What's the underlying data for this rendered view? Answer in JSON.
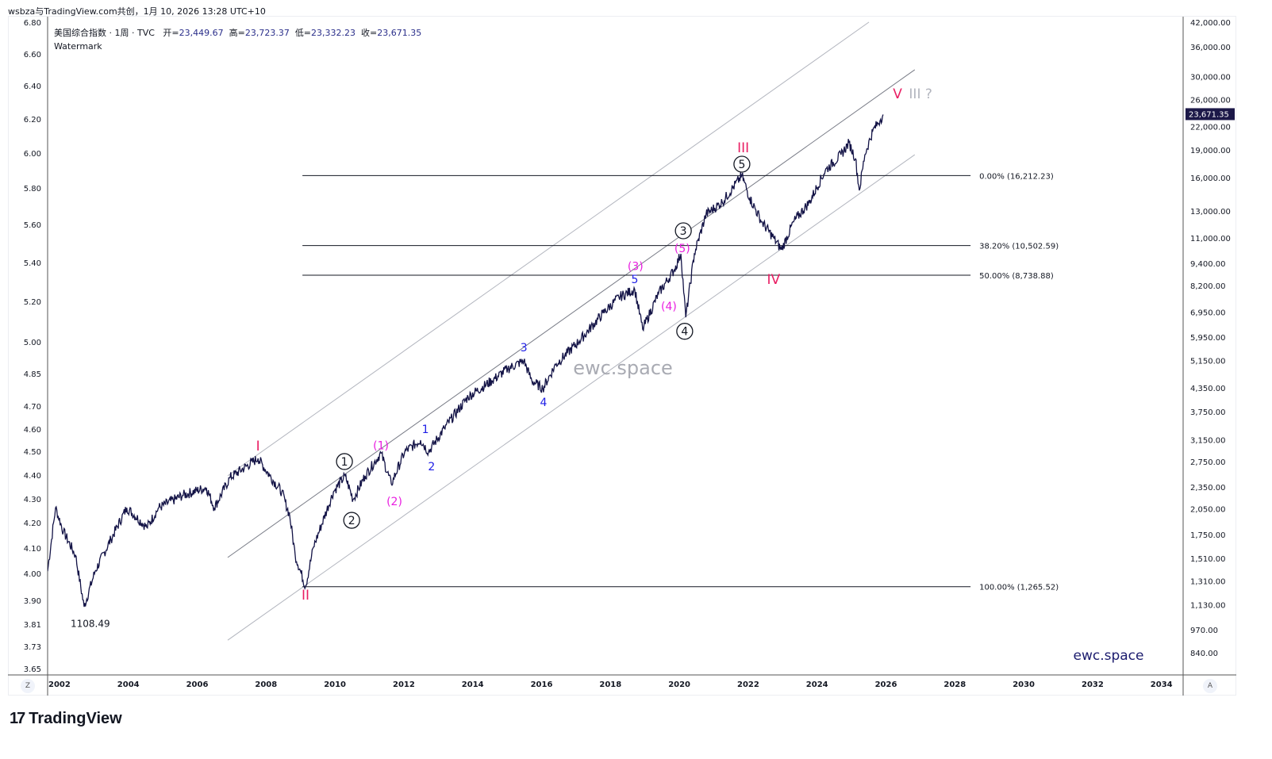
{
  "header": {
    "credit": "wsbza与TradingView.com共创，1月 10, 2026 13:28 UTC+10",
    "symbol": "美国综合指数 · 1周 · TVC",
    "open_label": "开=",
    "open": "23,449.67",
    "high_label": "高=",
    "high": "23,723.37",
    "low_label": "低=",
    "low": "23,332.23",
    "close_label": "收=",
    "close": "23,671.35",
    "watermark_label": "Watermark"
  },
  "controls": {
    "z_button": "Z",
    "a_button": "A"
  },
  "footer": {
    "brand": "TradingView",
    "brand_mark": "17"
  },
  "colors": {
    "price": "#131346",
    "red": "#e91e63",
    "magenta": "#e91ee0",
    "blue": "#1e1ee6",
    "channel": "#b2b5be",
    "channel_mid": "#787b86",
    "fib": "#131722",
    "last_price_bg": "#1c1848"
  },
  "chart_data": {
    "type": "line",
    "title": "美国综合指数 · 1周 · TVC",
    "scale": "log",
    "xlim": [
      2001.7,
      2034.8
    ],
    "ylim": [
      820,
      42000
    ],
    "last_price": 23671.35,
    "last_price_label": "23,671.35",
    "x_ticks": [
      "2002",
      "2004",
      "2006",
      "2008",
      "2010",
      "2012",
      "2014",
      "2016",
      "2018",
      "2020",
      "2022",
      "2024",
      "2026",
      "2028",
      "2030",
      "2032",
      "2034"
    ],
    "right_ticks": [
      42000,
      36000,
      30000,
      26000,
      22000,
      19000,
      16000,
      13000,
      11000,
      9400,
      8200,
      6950,
      5950,
      5150,
      4350,
      3750,
      3150,
      2750,
      2350,
      2050,
      1750,
      1510,
      1310,
      1130,
      970,
      840
    ],
    "left_ticks": [
      "6.80",
      "6.60",
      "6.40",
      "6.20",
      "6.00",
      "5.80",
      "5.60",
      "5.40",
      "5.20",
      "5.00",
      "4.85",
      "4.70",
      "4.60",
      "4.50",
      "4.40",
      "4.30",
      "4.20",
      "4.10",
      "4.00",
      "3.90",
      "3.81",
      "3.73",
      "3.65"
    ],
    "series": [
      {
        "name": "Composite weekly",
        "points": [
          [
            2001.7,
            1393
          ],
          [
            2001.93,
            2065
          ],
          [
            2002.16,
            1780
          ],
          [
            2002.51,
            1538
          ],
          [
            2002.76,
            1117
          ],
          [
            2003.08,
            1393
          ],
          [
            2003.54,
            1698
          ],
          [
            2004.0,
            2065
          ],
          [
            2004.58,
            1828
          ],
          [
            2004.93,
            2065
          ],
          [
            2005.62,
            2230
          ],
          [
            2006.31,
            2340
          ],
          [
            2006.54,
            2065
          ],
          [
            2007.0,
            2490
          ],
          [
            2007.81,
            2805
          ],
          [
            2008.15,
            2518
          ],
          [
            2008.5,
            2280
          ],
          [
            2008.73,
            1968
          ],
          [
            2008.89,
            1538
          ],
          [
            2009.19,
            1265
          ],
          [
            2009.42,
            1618
          ],
          [
            2010.0,
            2280
          ],
          [
            2010.34,
            2518
          ],
          [
            2010.57,
            2173
          ],
          [
            2010.92,
            2518
          ],
          [
            2011.38,
            2900
          ],
          [
            2011.68,
            2393
          ],
          [
            2012.07,
            2920
          ],
          [
            2012.53,
            3140
          ],
          [
            2012.76,
            2920
          ],
          [
            2013.22,
            3380
          ],
          [
            2013.91,
            4110
          ],
          [
            2014.6,
            4540
          ],
          [
            2015.06,
            4890
          ],
          [
            2015.53,
            5140
          ],
          [
            2015.76,
            4540
          ],
          [
            2016.08,
            4325
          ],
          [
            2016.45,
            5010
          ],
          [
            2017.14,
            5810
          ],
          [
            2017.83,
            6900
          ],
          [
            2018.29,
            7620
          ],
          [
            2018.75,
            8000
          ],
          [
            2018.98,
            6250
          ],
          [
            2019.44,
            7800
          ],
          [
            2019.9,
            9040
          ],
          [
            2020.09,
            9980
          ],
          [
            2020.23,
            6730
          ],
          [
            2020.48,
            9980
          ],
          [
            2020.82,
            12760
          ],
          [
            2021.29,
            13740
          ],
          [
            2021.86,
            16212
          ],
          [
            2022.09,
            14090
          ],
          [
            2022.44,
            12160
          ],
          [
            2022.78,
            11020
          ],
          [
            2023.01,
            10230
          ],
          [
            2023.36,
            12160
          ],
          [
            2023.82,
            13740
          ],
          [
            2024.28,
            16710
          ],
          [
            2024.74,
            18450
          ],
          [
            2024.97,
            19860
          ],
          [
            2025.16,
            17990
          ],
          [
            2025.27,
            14790
          ],
          [
            2025.43,
            18450
          ],
          [
            2025.66,
            21400
          ],
          [
            2025.89,
            23000
          ],
          [
            2025.96,
            23671
          ]
        ]
      }
    ],
    "fib_levels": [
      {
        "label": "0.00% (16,212.23)",
        "price": 16212.23
      },
      {
        "label": "38.20% (10,502.59)",
        "price": 10502.59
      },
      {
        "label": "50.00% (8,738.88)",
        "price": 8738.88
      },
      {
        "label": "100.00% (1,265.52)",
        "price": 1265.52
      }
    ],
    "fib_range": [
      2009.1,
      2028.5
    ],
    "channels": [
      {
        "name": "upper",
        "from": [
          2006.93,
          2518
        ],
        "to": [
          2025.55,
          42000
        ],
        "style": "light"
      },
      {
        "name": "middle",
        "from": [
          2006.93,
          1517
        ],
        "to": [
          2026.88,
          31260
        ],
        "style": "mid"
      },
      {
        "name": "lower",
        "from": [
          2006.93,
          908
        ],
        "to": [
          2026.88,
          18450
        ],
        "style": "light"
      }
    ],
    "annotations": [
      {
        "text": "I",
        "at": [
          2007.81,
          3034
        ],
        "color": "red"
      },
      {
        "text": "II",
        "at": [
          2009.19,
          1202
        ],
        "color": "red"
      },
      {
        "text": "III",
        "at": [
          2021.9,
          19280
        ],
        "color": "red"
      },
      {
        "text": "IV",
        "at": [
          2022.78,
          8530
        ],
        "color": "red"
      },
      {
        "text": "V",
        "at": [
          2026.38,
          26980
        ],
        "color": "red"
      },
      {
        "text": "III ?",
        "at": [
          2027.05,
          26980
        ],
        "color": "gray"
      },
      {
        "text": "1",
        "at": [
          2010.32,
          2750
        ],
        "color": "circle"
      },
      {
        "text": "2",
        "at": [
          2010.53,
          1910
        ],
        "color": "circle"
      },
      {
        "text": "3",
        "at": [
          2020.16,
          11510
        ],
        "color": "circle"
      },
      {
        "text": "4",
        "at": [
          2020.2,
          6170
        ],
        "color": "circle"
      },
      {
        "text": "5",
        "at": [
          2021.86,
          17400
        ],
        "color": "circle"
      },
      {
        "text": "(1)",
        "at": [
          2011.38,
          3040
        ],
        "color": "magenta"
      },
      {
        "text": "(2)",
        "at": [
          2011.77,
          2150
        ],
        "color": "magenta"
      },
      {
        "text": "(3)",
        "at": [
          2018.77,
          9230
        ],
        "color": "magenta"
      },
      {
        "text": "(4)",
        "at": [
          2019.74,
          7210
        ],
        "color": "magenta"
      },
      {
        "text": "(5)",
        "at": [
          2020.13,
          10330
        ],
        "color": "magenta"
      },
      {
        "text": "1",
        "at": [
          2012.67,
          3365
        ],
        "color": "blue"
      },
      {
        "text": "2",
        "at": [
          2012.85,
          2667
        ],
        "color": "blue"
      },
      {
        "text": "3",
        "at": [
          2015.53,
          5580
        ],
        "color": "blue"
      },
      {
        "text": "4",
        "at": [
          2016.1,
          3970
        ],
        "color": "blue"
      },
      {
        "text": "5",
        "at": [
          2018.75,
          8530
        ],
        "color": "blue"
      },
      {
        "text": "1108.49",
        "at": [
          2002.94,
          1007
        ],
        "color": "dark"
      }
    ],
    "watermarks": {
      "center": "ewc.space",
      "corner": "ewc.space"
    }
  }
}
